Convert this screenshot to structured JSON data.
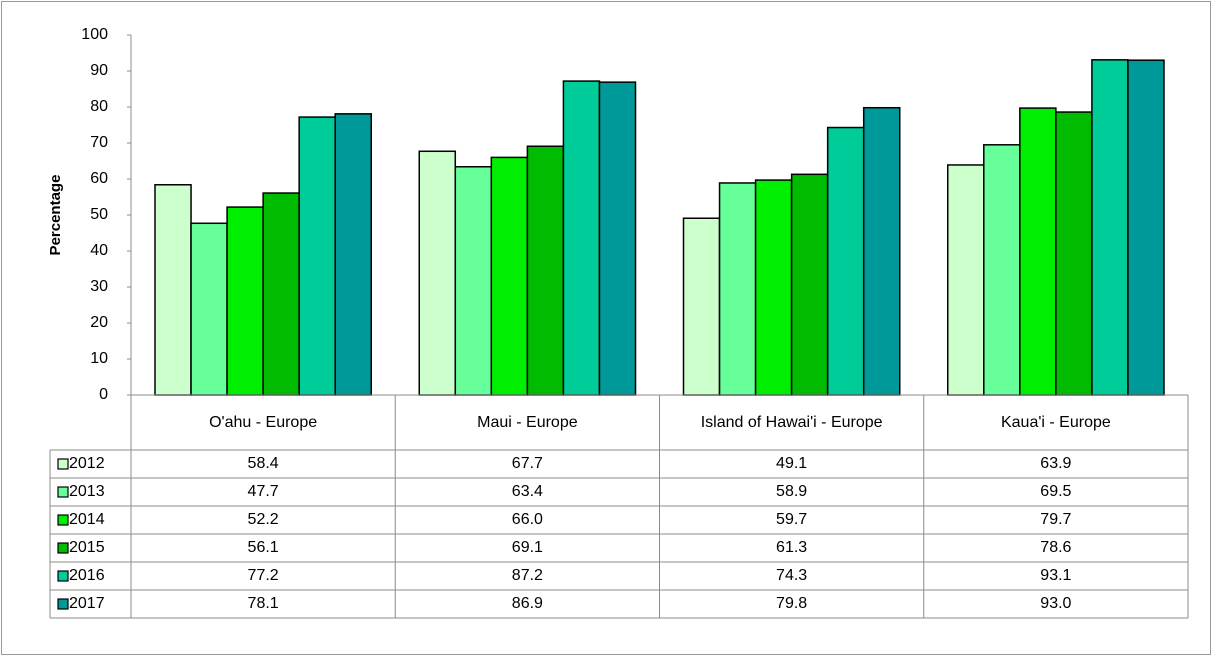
{
  "chart_data": {
    "type": "bar",
    "y_label": "Percentage",
    "categories": [
      "O'ahu - Europe",
      "Maui - Europe",
      "Island of Hawai'i - Europe",
      "Kaua'i - Europe"
    ],
    "ylim": [
      0,
      100
    ],
    "yticks": [
      0,
      10,
      20,
      30,
      40,
      50,
      60,
      70,
      80,
      90,
      100
    ],
    "series": [
      {
        "name": "2012",
        "color": "#ccffcc",
        "values": [
          58.4,
          67.7,
          49.1,
          63.9
        ],
        "value_labels": [
          "58.4",
          "67.7",
          "49.1",
          "63.9"
        ]
      },
      {
        "name": "2013",
        "color": "#66ff99",
        "values": [
          47.7,
          63.4,
          58.9,
          69.5
        ],
        "value_labels": [
          "47.7",
          "63.4",
          "58.9",
          "69.5"
        ]
      },
      {
        "name": "2014",
        "color": "#00ee00",
        "values": [
          52.2,
          66.0,
          59.7,
          79.7
        ],
        "value_labels": [
          "52.2",
          "66.0",
          "59.7",
          "79.7"
        ]
      },
      {
        "name": "2015",
        "color": "#00bb00",
        "values": [
          56.1,
          69.1,
          61.3,
          78.6
        ],
        "value_labels": [
          "56.1",
          "69.1",
          "61.3",
          "78.6"
        ]
      },
      {
        "name": "2016",
        "color": "#00cc99",
        "values": [
          77.2,
          87.2,
          74.3,
          93.1
        ],
        "value_labels": [
          "77.2",
          "87.2",
          "74.3",
          "93.1"
        ]
      },
      {
        "name": "2017",
        "color": "#009999",
        "values": [
          78.1,
          86.9,
          79.8,
          93.0
        ],
        "value_labels": [
          "78.1",
          "86.9",
          "79.8",
          "93.0"
        ]
      }
    ]
  }
}
